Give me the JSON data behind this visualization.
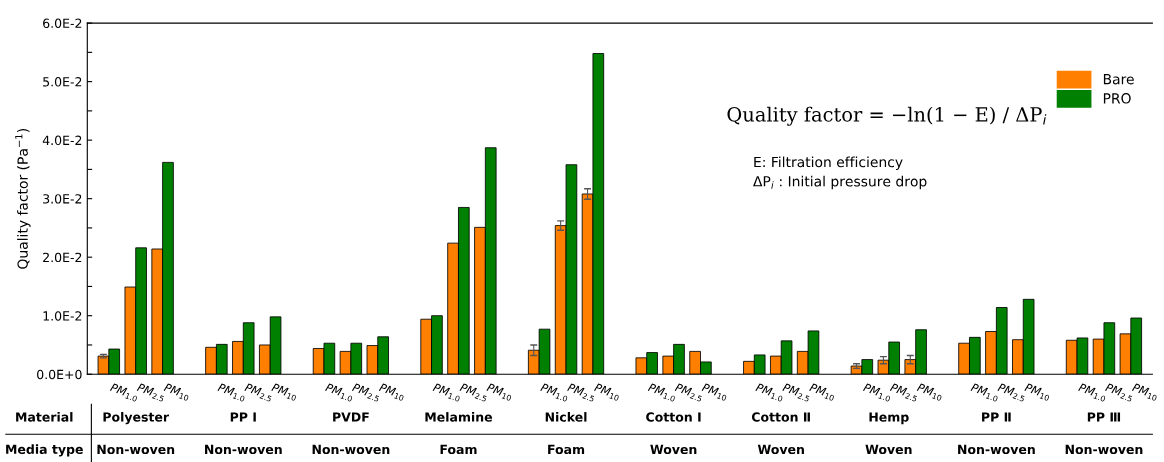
{
  "chart_data": {
    "type": "bar",
    "ylabel": "Quality factor (Pa$^{−1}$)",
    "categories": [
      "PM$_{1.0}$",
      "PM$_{2.5}$",
      "PM$_{10}$",
      null,
      "PM$_{1.0}$",
      "PM$_{2.5}$",
      "PM$_{10}$",
      null,
      "PM$_{1.0}$",
      "PM$_{2.5}$",
      "PM$_{10}$",
      null,
      "PM$_{1.0}$",
      "PM$_{2.5}$",
      "PM$_{10}$",
      null,
      "PM$_{1.0}$",
      "PM$_{2.5}$",
      "PM$_{10}$",
      null,
      "PM$_{1.0}$",
      "PM$_{2.5}$",
      "PM$_{10}$",
      null,
      "PM$_{1.0}$",
      "PM$_{2.5}$",
      "PM$_{10}$",
      null,
      "PM$_{1.0}$",
      "PM$_{2.5}$",
      "PM$_{10}$",
      null,
      "PM$_{1.0}$",
      "PM$_{2.5}$",
      "PM$_{10}$",
      null,
      "PM$_{1.0}$",
      "PM$_{2.5}$",
      "PM$_{10}$"
    ],
    "series": [
      {
        "name": "Bare",
        "color": "#ff8000",
        "values": [
          0.0031,
          0.0149,
          0.0214,
          null,
          0.0046,
          0.0056,
          0.005,
          null,
          0.0044,
          0.0039,
          0.0049,
          null,
          0.0094,
          0.0224,
          0.0251,
          null,
          0.0041,
          0.0254,
          0.0308,
          null,
          0.0028,
          0.0031,
          0.0039,
          null,
          0.0022,
          0.0031,
          0.0039,
          null,
          0.0014,
          0.0024,
          0.0025,
          null,
          0.0053,
          0.0073,
          0.0059,
          null,
          0.0058,
          0.006,
          0.0069
        ],
        "errors": [
          0.0003,
          null,
          null,
          null,
          null,
          null,
          null,
          null,
          null,
          null,
          null,
          null,
          null,
          null,
          null,
          null,
          0.0009,
          0.0008,
          0.0009,
          null,
          null,
          null,
          null,
          null,
          null,
          null,
          null,
          null,
          0.0004,
          0.0006,
          0.0007,
          null,
          null,
          null,
          null,
          null,
          null,
          null,
          null
        ]
      },
      {
        "name": "PRO",
        "color": "#008000",
        "values": [
          0.0043,
          0.0216,
          0.0362,
          null,
          0.0051,
          0.0088,
          0.0098,
          null,
          0.0053,
          0.0053,
          0.0064,
          null,
          0.01,
          0.0285,
          0.0387,
          null,
          0.0077,
          0.0358,
          0.0548,
          null,
          0.0037,
          0.0051,
          0.0021,
          null,
          0.0033,
          0.0057,
          0.0074,
          null,
          0.0025,
          0.0055,
          0.0076,
          null,
          0.0063,
          0.0114,
          0.0128,
          null,
          0.0062,
          0.0088,
          0.0096
        ]
      }
    ],
    "ylim": [
      0,
      0.06
    ],
    "yticks": [
      {
        "value": 0,
        "label": "0.0E+0"
      },
      {
        "value": 0.005,
        "label": null
      },
      {
        "value": 0.01,
        "label": "1.0E-2"
      },
      {
        "value": 0.015,
        "label": null
      },
      {
        "value": 0.02,
        "label": "2.0E-2"
      },
      {
        "value": 0.025,
        "label": null
      },
      {
        "value": 0.03,
        "label": "3.0E-2"
      },
      {
        "value": 0.035,
        "label": null
      },
      {
        "value": 0.04,
        "label": "4.0E-2"
      },
      {
        "value": 0.045,
        "label": null
      },
      {
        "value": 0.05,
        "label": "5.0E-2"
      },
      {
        "value": 0.055,
        "label": null
      },
      {
        "value": 0.06,
        "label": "6.0E-2"
      }
    ],
    "legend": "top right",
    "grid": false,
    "annotations": [
      "Quality factor = −ln(1 − E) / ΔP$_{i}$",
      "E: Filtration efficiency",
      "ΔP$_{i}$ : Initial pressure drop",
      "Material",
      "Polyester",
      "PP Ⅰ",
      "PVDF",
      "Melamine",
      "Nickel",
      "Cotton Ⅰ",
      "Cotton Ⅱ",
      "Hemp",
      "PP Ⅱ",
      "PP Ⅲ",
      "Media type",
      "Non-woven",
      "Non-woven",
      "Non-woven",
      "Foam",
      "Foam",
      "Woven",
      "Woven",
      "Woven",
      "Non-woven",
      "Non-woven"
    ]
  }
}
